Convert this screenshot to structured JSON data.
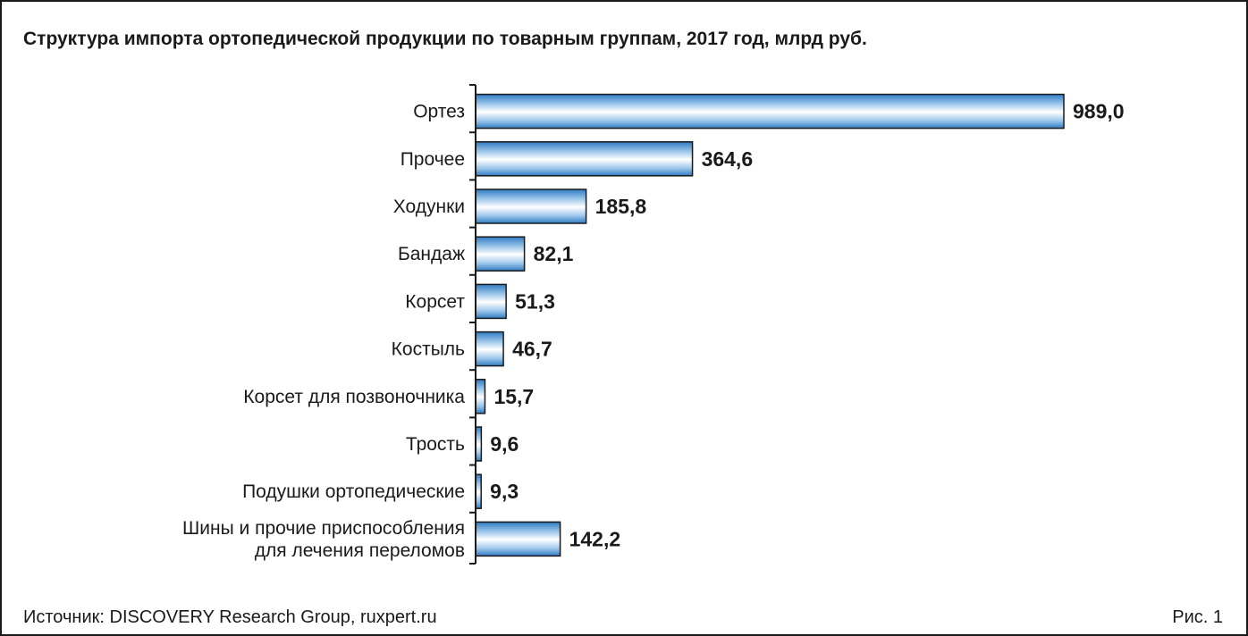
{
  "title": "Структура импорта ортопедической продукции по товарным группам, 2017 год, млрд руб.",
  "source": "Источник: DISCOVERY Research Group, ruxpert.ru",
  "figure_label": "Рис. 1",
  "colors": {
    "bar_edge": "#1a1a1a",
    "bar_dark": "#2e7bc4",
    "bar_mid": "#9cc6ea",
    "bar_light": "#ffffff",
    "axis": "#1a1a1a"
  },
  "chart_data": {
    "type": "bar",
    "orientation": "horizontal",
    "categories": [
      [
        "Ортез"
      ],
      [
        "Прочее"
      ],
      [
        "Ходунки"
      ],
      [
        "Бандаж"
      ],
      [
        "Корсет"
      ],
      [
        "Костыль"
      ],
      [
        "Корсет для позвоночника"
      ],
      [
        "Трость"
      ],
      [
        "Подушки ортопедические"
      ],
      [
        "Шины и прочие приспособления",
        "для лечения переломов"
      ]
    ],
    "values": [
      989.0,
      364.6,
      185.8,
      82.1,
      51.3,
      46.7,
      15.7,
      9.6,
      9.3,
      142.2
    ],
    "value_labels": [
      "989,0",
      "364,6",
      "185,8",
      "82,1",
      "51,3",
      "46,7",
      "15,7",
      "9,6",
      "9,3",
      "142,2"
    ],
    "title": "Структура импорта ортопедической продукции по товарным группам, 2017 год, млрд руб.",
    "xlim": [
      0,
      989.0
    ],
    "grid": false,
    "legend": "none"
  }
}
